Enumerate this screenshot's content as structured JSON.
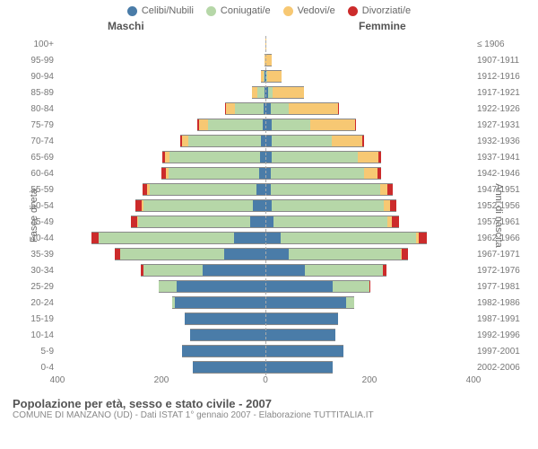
{
  "legend": [
    {
      "label": "Celibi/Nubili",
      "color": "#4a7ca8"
    },
    {
      "label": "Coniugati/e",
      "color": "#b6d7a8"
    },
    {
      "label": "Vedovi/e",
      "color": "#f7c873"
    },
    {
      "label": "Divorziati/e",
      "color": "#cc2b2b"
    }
  ],
  "headers": {
    "male": "Maschi",
    "female": "Femmine",
    "birth": "≤ 1906"
  },
  "axes": {
    "y_left_title": "Fasce di età",
    "y_right_title": "Anni di nascita",
    "x_max": 400,
    "x_ticks": [
      400,
      200,
      0,
      200,
      400
    ]
  },
  "rows": [
    {
      "age": "100+",
      "birth": "≤ 1906",
      "m": {
        "s": 0,
        "m": 0,
        "w": 0,
        "d": 0
      },
      "f": {
        "s": 0,
        "m": 0,
        "w": 1,
        "d": 0
      }
    },
    {
      "age": "95-99",
      "birth": "1907-1911",
      "m": {
        "s": 0,
        "m": 0,
        "w": 1,
        "d": 0
      },
      "f": {
        "s": 0,
        "m": 0,
        "w": 12,
        "d": 0
      }
    },
    {
      "age": "90-94",
      "birth": "1912-1916",
      "m": {
        "s": 1,
        "m": 3,
        "w": 5,
        "d": 0
      },
      "f": {
        "s": 2,
        "m": 1,
        "w": 28,
        "d": 0
      }
    },
    {
      "age": "85-89",
      "birth": "1917-1921",
      "m": {
        "s": 1,
        "m": 15,
        "w": 10,
        "d": 0
      },
      "f": {
        "s": 6,
        "m": 8,
        "w": 60,
        "d": 0
      }
    },
    {
      "age": "80-84",
      "birth": "1922-1926",
      "m": {
        "s": 3,
        "m": 55,
        "w": 18,
        "d": 2
      },
      "f": {
        "s": 10,
        "m": 35,
        "w": 95,
        "d": 2
      }
    },
    {
      "age": "75-79",
      "birth": "1927-1931",
      "m": {
        "s": 5,
        "m": 105,
        "w": 18,
        "d": 3
      },
      "f": {
        "s": 12,
        "m": 75,
        "w": 85,
        "d": 2
      }
    },
    {
      "age": "70-74",
      "birth": "1932-1936",
      "m": {
        "s": 8,
        "m": 140,
        "w": 12,
        "d": 4
      },
      "f": {
        "s": 12,
        "m": 115,
        "w": 60,
        "d": 3
      }
    },
    {
      "age": "65-69",
      "birth": "1937-1941",
      "m": {
        "s": 10,
        "m": 175,
        "w": 8,
        "d": 6
      },
      "f": {
        "s": 12,
        "m": 165,
        "w": 40,
        "d": 5
      }
    },
    {
      "age": "60-64",
      "birth": "1942-1946",
      "m": {
        "s": 12,
        "m": 175,
        "w": 5,
        "d": 8
      },
      "f": {
        "s": 10,
        "m": 180,
        "w": 25,
        "d": 8
      }
    },
    {
      "age": "55-59",
      "birth": "1947-1951",
      "m": {
        "s": 18,
        "m": 205,
        "w": 4,
        "d": 10
      },
      "f": {
        "s": 10,
        "m": 210,
        "w": 15,
        "d": 10
      }
    },
    {
      "age": "50-54",
      "birth": "1952-1956",
      "m": {
        "s": 25,
        "m": 210,
        "w": 3,
        "d": 12
      },
      "f": {
        "s": 12,
        "m": 215,
        "w": 12,
        "d": 12
      }
    },
    {
      "age": "45-49",
      "birth": "1957-1961",
      "m": {
        "s": 30,
        "m": 215,
        "w": 1,
        "d": 12
      },
      "f": {
        "s": 15,
        "m": 220,
        "w": 8,
        "d": 14
      }
    },
    {
      "age": "40-44",
      "birth": "1962-1966",
      "m": {
        "s": 60,
        "m": 260,
        "w": 1,
        "d": 14
      },
      "f": {
        "s": 30,
        "m": 260,
        "w": 5,
        "d": 15
      }
    },
    {
      "age": "35-39",
      "birth": "1967-1971",
      "m": {
        "s": 80,
        "m": 200,
        "w": 0,
        "d": 10
      },
      "f": {
        "s": 45,
        "m": 215,
        "w": 2,
        "d": 12
      }
    },
    {
      "age": "30-34",
      "birth": "1972-1976",
      "m": {
        "s": 120,
        "m": 115,
        "w": 0,
        "d": 4
      },
      "f": {
        "s": 75,
        "m": 150,
        "w": 1,
        "d": 6
      }
    },
    {
      "age": "25-29",
      "birth": "1977-1981",
      "m": {
        "s": 170,
        "m": 35,
        "w": 0,
        "d": 1
      },
      "f": {
        "s": 130,
        "m": 70,
        "w": 0,
        "d": 2
      }
    },
    {
      "age": "20-24",
      "birth": "1982-1986",
      "m": {
        "s": 175,
        "m": 5,
        "w": 0,
        "d": 0
      },
      "f": {
        "s": 155,
        "m": 15,
        "w": 0,
        "d": 0
      }
    },
    {
      "age": "15-19",
      "birth": "1987-1991",
      "m": {
        "s": 155,
        "m": 0,
        "w": 0,
        "d": 0
      },
      "f": {
        "s": 140,
        "m": 0,
        "w": 0,
        "d": 0
      }
    },
    {
      "age": "10-14",
      "birth": "1992-1996",
      "m": {
        "s": 145,
        "m": 0,
        "w": 0,
        "d": 0
      },
      "f": {
        "s": 135,
        "m": 0,
        "w": 0,
        "d": 0
      }
    },
    {
      "age": "5-9",
      "birth": "1997-2001",
      "m": {
        "s": 160,
        "m": 0,
        "w": 0,
        "d": 0
      },
      "f": {
        "s": 150,
        "m": 0,
        "w": 0,
        "d": 0
      }
    },
    {
      "age": "0-4",
      "birth": "2002-2006",
      "m": {
        "s": 140,
        "m": 0,
        "w": 0,
        "d": 0
      },
      "f": {
        "s": 130,
        "m": 0,
        "w": 0,
        "d": 0
      }
    }
  ],
  "title": "Popolazione per età, sesso e stato civile - 2007",
  "subtitle": "COMUNE DI MANZANO (UD) - Dati ISTAT 1° gennaio 2007 - Elaborazione TUTTITALIA.IT",
  "colors": {
    "s": "#4a7ca8",
    "m": "#b6d7a8",
    "w": "#f7c873",
    "d": "#cc2b2b",
    "border": "#8a8a8a"
  }
}
